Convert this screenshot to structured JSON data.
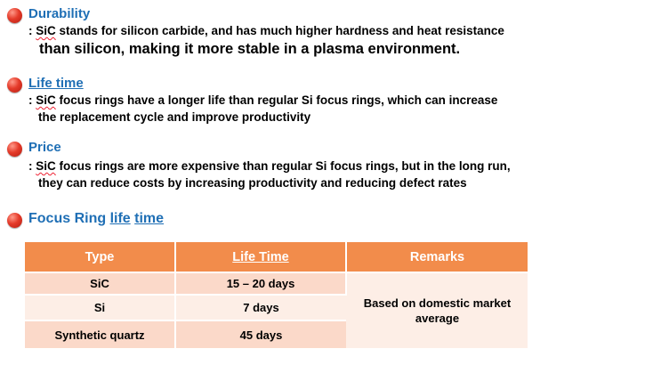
{
  "sections": [
    {
      "heading": "Durability",
      "line1_prefix": ": ",
      "line1_sic": "SiC",
      "line1_rest": " stands for silicon carbide, and has much higher hardness and heat resistance",
      "line2": "than silicon, making it more stable in a plasma environment."
    },
    {
      "heading": "Life time",
      "line1_prefix": ": ",
      "line1_sic": "SiC",
      "line1_rest": " focus rings have a longer life than regular Si focus rings, which can increase",
      "line2": "the replacement cycle and improve productivity"
    },
    {
      "heading": "Price",
      "line1_prefix": ": ",
      "line1_sic": "SiC",
      "line1_rest": " focus rings are more expensive than regular Si focus rings, but in the long run,",
      "line2": "they can reduce costs by increasing productivity and reducing defect rates"
    }
  ],
  "table_section": {
    "heading_part1": "Focus Ring ",
    "heading_part2": "life",
    "heading_part3": " ",
    "heading_part4": "time"
  },
  "table": {
    "headers": [
      "Type",
      "Life Time",
      "Remarks"
    ],
    "rows": [
      {
        "type": "SiC",
        "life": "15 – 20 days"
      },
      {
        "type": "Si",
        "life": "7 days"
      },
      {
        "type": "Synthetic quartz",
        "life": "45 days"
      }
    ],
    "remark": "Based on domestic market average"
  },
  "colors": {
    "heading_blue": "#1f6fb5",
    "bullet_red": "#e53b2a",
    "table_header": "#f28c4b",
    "row_dark": "#fbd9c9",
    "row_light": "#fdeee6"
  }
}
